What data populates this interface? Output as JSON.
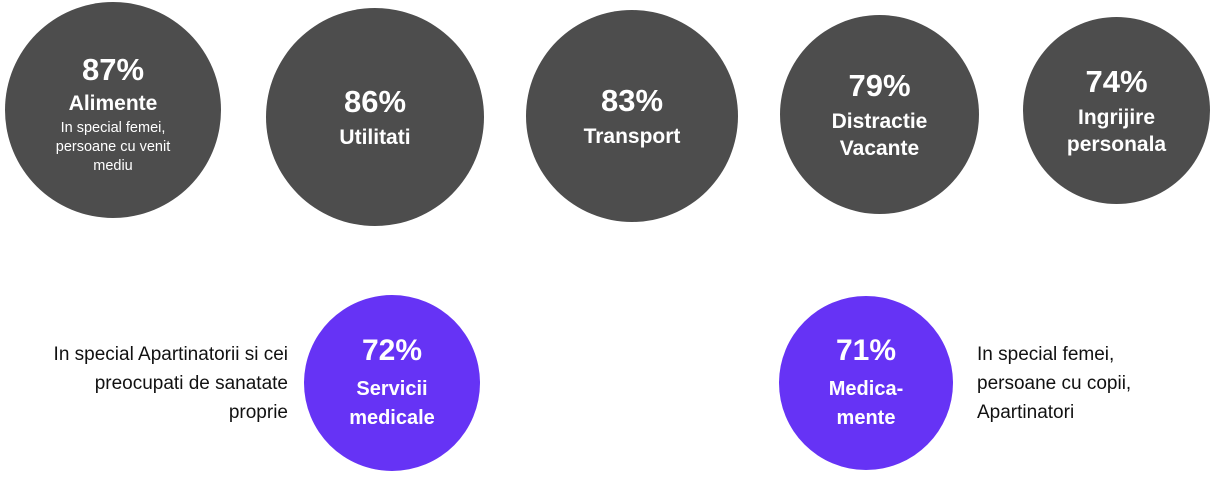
{
  "colors": {
    "dark_circle": "#4d4d4d",
    "accent_circle": "#6633f5",
    "text_on_circle": "#ffffff",
    "side_text": "#111111"
  },
  "circles": [
    {
      "percent": "87%",
      "label_lines": [
        "Alimente"
      ],
      "note_lines": [
        "In special femei,",
        "persoane cu venit",
        "mediu"
      ],
      "color": "#4d4d4d"
    },
    {
      "percent": "86%",
      "label_lines": [
        "Utilitati"
      ],
      "color": "#4d4d4d"
    },
    {
      "percent": "83%",
      "label_lines": [
        "Transport"
      ],
      "color": "#4d4d4d"
    },
    {
      "percent": "79%",
      "label_lines": [
        "Distractie",
        "Vacante"
      ],
      "color": "#4d4d4d"
    },
    {
      "percent": "74%",
      "label_lines": [
        "Ingrijire",
        "personala"
      ],
      "color": "#4d4d4d"
    },
    {
      "percent": "72%",
      "label_lines": [
        "Servicii",
        "medicale"
      ],
      "color": "#6633f5"
    },
    {
      "percent": "71%",
      "label_lines": [
        "Medica-",
        "mente"
      ],
      "color": "#6633f5"
    }
  ],
  "side_notes": {
    "left_lines": [
      "In special Apartinatorii si cei",
      "preocupati de sanatate",
      "proprie"
    ],
    "right_lines": [
      "In special femei,",
      "persoane cu copii,",
      "Apartinatori"
    ]
  }
}
